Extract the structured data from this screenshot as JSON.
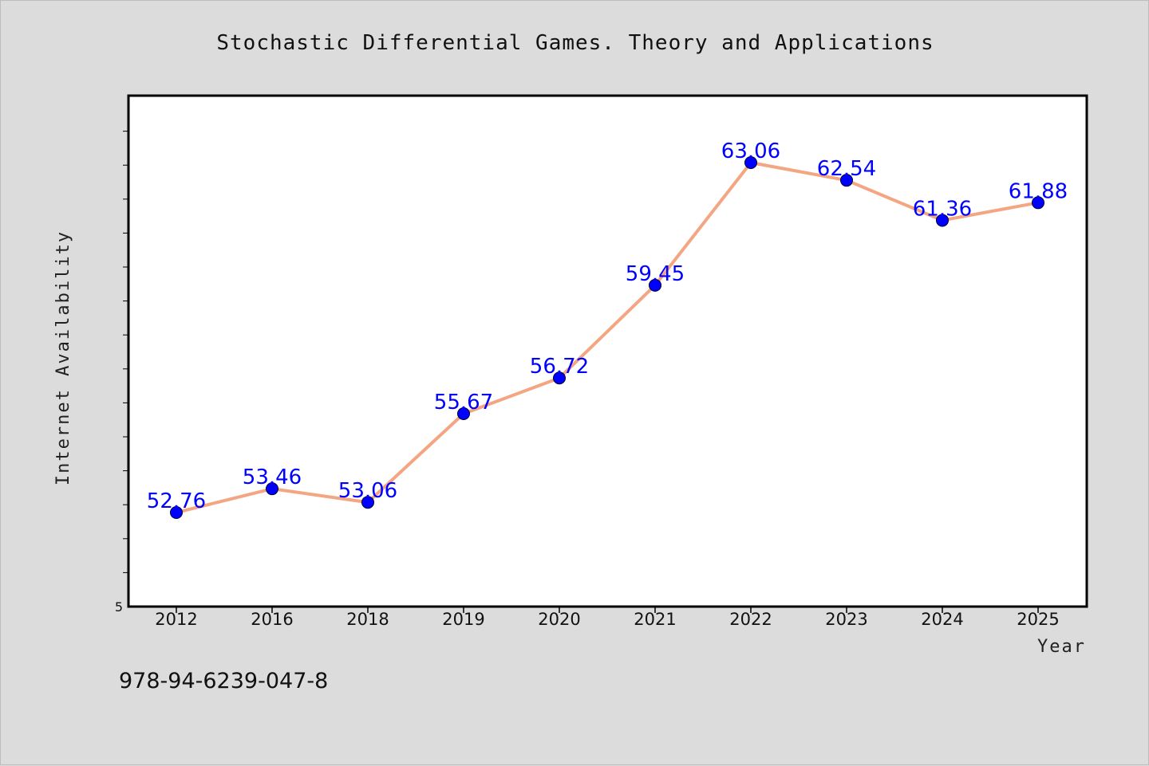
{
  "chart_data": {
    "type": "line",
    "title": "Stochastic Differential Games. Theory and Applications",
    "xlabel": "Year",
    "ylabel": "Internet Availability",
    "categories": [
      "2012",
      "2016",
      "2018",
      "2019",
      "2020",
      "2021",
      "2022",
      "2023",
      "2024",
      "2025"
    ],
    "values": [
      52.76,
      53.46,
      53.06,
      55.67,
      56.72,
      59.45,
      63.06,
      62.54,
      61.36,
      61.88
    ],
    "data_labels": [
      "52.76",
      "53.46",
      "53.06",
      "55.67",
      "56.72",
      "59.45",
      "63.06",
      "62.54",
      "61.36",
      "61.88"
    ],
    "y_tick_labels": [
      "5"
    ],
    "grid": false,
    "line_color": "#f4a582",
    "marker_color": "#0000ff",
    "label_color": "#0000ff"
  },
  "footer_text": "978-94-6239-047-8"
}
